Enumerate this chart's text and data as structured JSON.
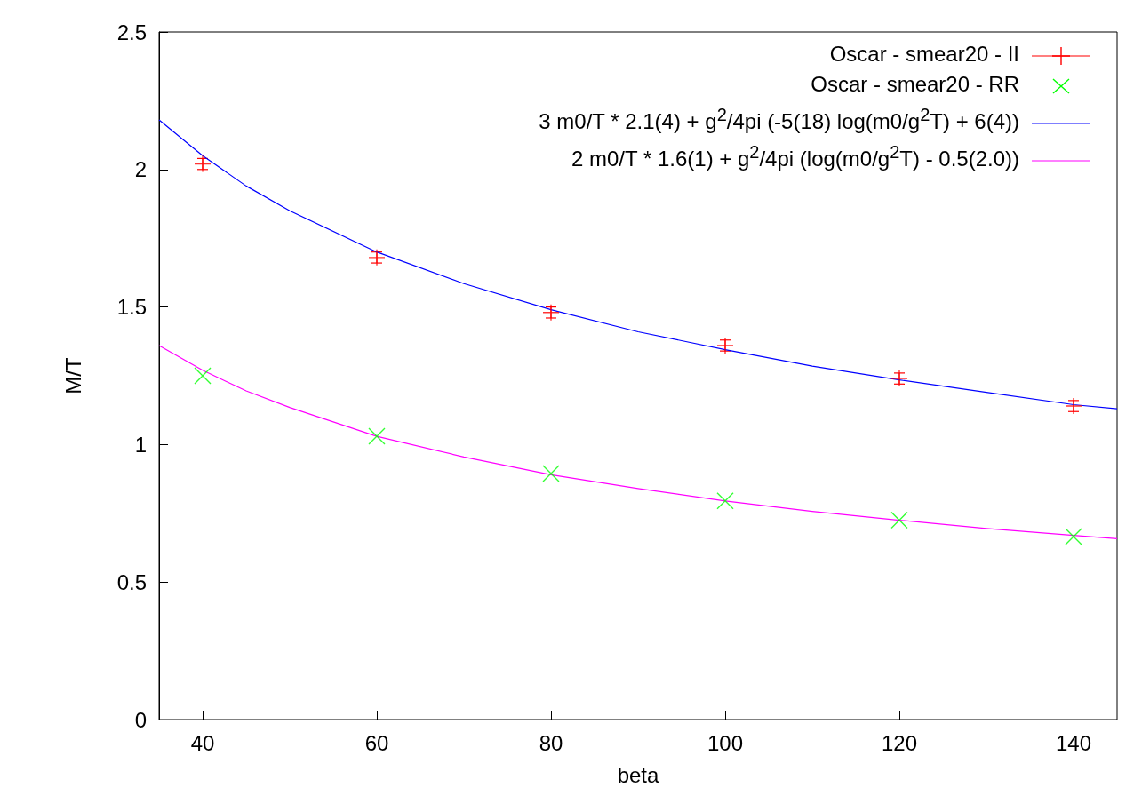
{
  "chart_data": {
    "type": "scatter",
    "xlabel": "beta",
    "ylabel": "M/T",
    "x": [
      40,
      60,
      80,
      100,
      120,
      140
    ],
    "xlim": [
      35,
      145
    ],
    "xticks": [
      40,
      60,
      80,
      100,
      120,
      140
    ],
    "ylim": [
      0,
      2.5
    ],
    "yticks": [
      0,
      0.5,
      1,
      1.5,
      2,
      2.5
    ],
    "grid": false,
    "legend": "top right",
    "series": [
      {
        "name": "Oscar - smear20 - II",
        "color": "#ff0000",
        "marker": "plus",
        "values": [
          2.02,
          1.68,
          1.48,
          1.36,
          1.24,
          1.14
        ],
        "errors": [
          0.02,
          0.02,
          0.02,
          0.02,
          0.02,
          0.02
        ]
      },
      {
        "name": "Oscar - smear20 - RR",
        "color": "#00ff00",
        "marker": "cross",
        "values": [
          1.25,
          1.03,
          0.895,
          0.795,
          0.725,
          0.665
        ]
      },
      {
        "name": "3 m0/T * 2.1(4) + g$^{2}$/4pi (-5(18) log(m0/g$^{2}$T) + 6(4))",
        "type": "line",
        "color": "#0000ff",
        "marker": "none",
        "line_style": "solid",
        "x": [
          35,
          40,
          45,
          50,
          60,
          70,
          80,
          90,
          100,
          110,
          120,
          130,
          140,
          145
        ],
        "values": [
          2.18,
          2.05,
          1.94,
          1.85,
          1.7,
          1.585,
          1.49,
          1.41,
          1.345,
          1.285,
          1.235,
          1.19,
          1.145,
          1.13
        ]
      },
      {
        "name": "2 m0/T * 1.6(1) + g$^{2}$/4pi (log(m0/g$^{2}$T) - 0.5(2.0))",
        "type": "line",
        "color": "#ff00ff",
        "marker": "none",
        "line_style": "solid",
        "x": [
          35,
          40,
          45,
          50,
          60,
          70,
          80,
          90,
          100,
          110,
          120,
          130,
          140,
          145
        ],
        "values": [
          1.36,
          1.27,
          1.195,
          1.135,
          1.03,
          0.955,
          0.89,
          0.84,
          0.795,
          0.757,
          0.725,
          0.695,
          0.67,
          0.658
        ]
      }
    ]
  }
}
